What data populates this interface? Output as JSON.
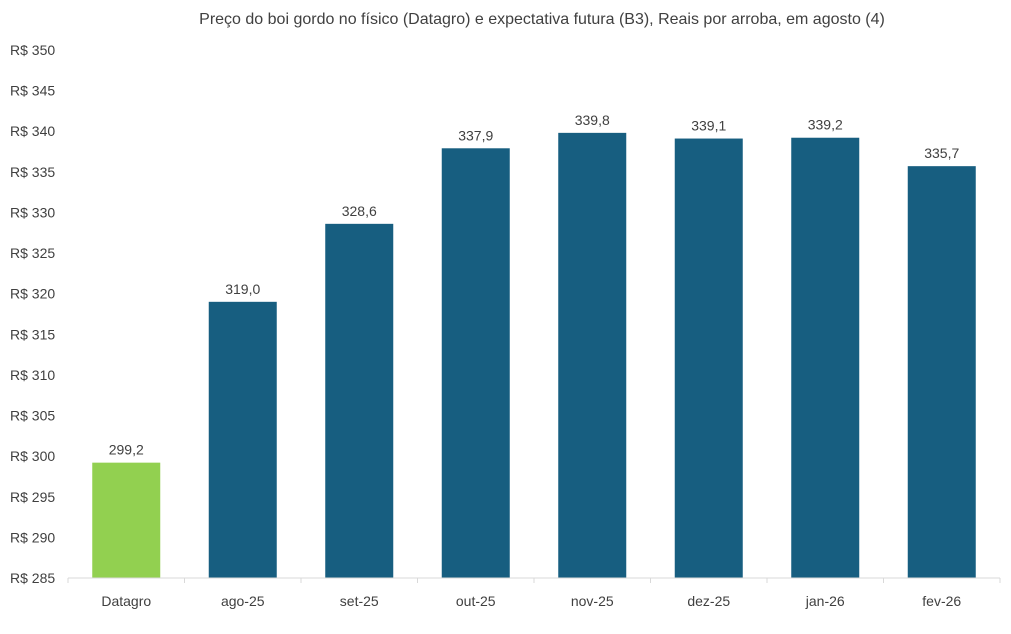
{
  "chart_data": {
    "type": "bar",
    "title": "Preço do boi gordo no físico (Datagro)  e expectativa futura (B3), Reais por arroba, em agosto (4)",
    "xlabel": "",
    "ylabel": "",
    "categories": [
      "Datagro",
      "ago-25",
      "set-25",
      "out-25",
      "nov-25",
      "dez-25",
      "jan-26",
      "fev-26"
    ],
    "values": [
      299.2,
      319.0,
      328.6,
      337.9,
      339.8,
      339.1,
      339.2,
      335.7
    ],
    "data_labels": [
      "299,2",
      "319,0",
      "328,6",
      "337,9",
      "339,8",
      "339,1",
      "339,2",
      "335,7"
    ],
    "bar_colors": [
      "#92d050",
      "#175e80",
      "#175e80",
      "#175e80",
      "#175e80",
      "#175e80",
      "#175e80",
      "#175e80"
    ],
    "ylim": [
      285,
      350
    ],
    "yticks": [
      285,
      290,
      295,
      300,
      305,
      310,
      315,
      320,
      325,
      330,
      335,
      340,
      345,
      350
    ],
    "ytick_labels": [
      "R$ 285",
      "R$ 290",
      "R$ 295",
      "R$ 300",
      "R$ 305",
      "R$ 310",
      "R$ 315",
      "R$ 320",
      "R$ 325",
      "R$ 330",
      "R$ 335",
      "R$ 340",
      "R$ 345",
      "R$ 350"
    ],
    "grid": false,
    "legend": "none"
  }
}
